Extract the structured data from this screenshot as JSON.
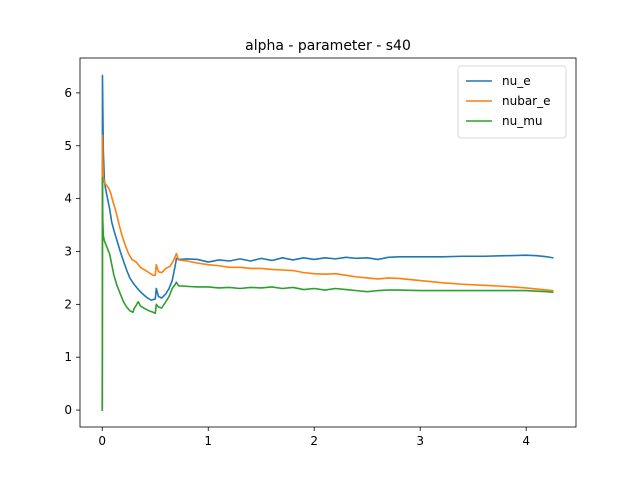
{
  "chart_data": {
    "type": "line",
    "title": "alpha - parameter - s40",
    "xlabel": "",
    "ylabel": "",
    "xlim": [
      -0.21,
      4.47
    ],
    "ylim": [
      -0.32,
      6.66
    ],
    "xticks": [
      0,
      1,
      2,
      3,
      4
    ],
    "yticks": [
      0,
      1,
      2,
      3,
      4,
      5,
      6
    ],
    "grid": false,
    "legend_position": "top-right",
    "series": [
      {
        "name": "nu_e",
        "color": "#1f77b4",
        "points": [
          [
            0.0,
            0.0
          ],
          [
            0.002,
            6.33
          ],
          [
            0.006,
            5.6
          ],
          [
            0.01,
            4.9
          ],
          [
            0.02,
            4.35
          ],
          [
            0.03,
            4.2
          ],
          [
            0.05,
            4.0
          ],
          [
            0.07,
            3.8
          ],
          [
            0.09,
            3.55
          ],
          [
            0.11,
            3.4
          ],
          [
            0.14,
            3.2
          ],
          [
            0.17,
            3.0
          ],
          [
            0.2,
            2.82
          ],
          [
            0.23,
            2.65
          ],
          [
            0.26,
            2.5
          ],
          [
            0.3,
            2.38
          ],
          [
            0.34,
            2.28
          ],
          [
            0.38,
            2.2
          ],
          [
            0.42,
            2.13
          ],
          [
            0.46,
            2.08
          ],
          [
            0.5,
            2.1
          ],
          [
            0.51,
            2.3
          ],
          [
            0.53,
            2.15
          ],
          [
            0.56,
            2.12
          ],
          [
            0.6,
            2.2
          ],
          [
            0.63,
            2.3
          ],
          [
            0.66,
            2.45
          ],
          [
            0.69,
            2.75
          ],
          [
            0.7,
            2.87
          ],
          [
            0.72,
            2.85
          ],
          [
            0.8,
            2.86
          ],
          [
            0.9,
            2.85
          ],
          [
            1.0,
            2.8
          ],
          [
            1.1,
            2.84
          ],
          [
            1.2,
            2.82
          ],
          [
            1.3,
            2.86
          ],
          [
            1.4,
            2.82
          ],
          [
            1.5,
            2.87
          ],
          [
            1.6,
            2.83
          ],
          [
            1.7,
            2.88
          ],
          [
            1.8,
            2.84
          ],
          [
            1.9,
            2.88
          ],
          [
            2.0,
            2.85
          ],
          [
            2.1,
            2.88
          ],
          [
            2.2,
            2.86
          ],
          [
            2.3,
            2.89
          ],
          [
            2.4,
            2.87
          ],
          [
            2.5,
            2.88
          ],
          [
            2.6,
            2.85
          ],
          [
            2.7,
            2.89
          ],
          [
            2.8,
            2.9
          ],
          [
            3.0,
            2.9
          ],
          [
            3.2,
            2.9
          ],
          [
            3.4,
            2.91
          ],
          [
            3.6,
            2.91
          ],
          [
            3.8,
            2.92
          ],
          [
            4.0,
            2.93
          ],
          [
            4.1,
            2.92
          ],
          [
            4.2,
            2.9
          ],
          [
            4.25,
            2.88
          ]
        ]
      },
      {
        "name": "nubar_e",
        "color": "#ff7f0e",
        "points": [
          [
            0.0,
            0.05
          ],
          [
            0.002,
            5.2
          ],
          [
            0.005,
            4.7
          ],
          [
            0.01,
            4.4
          ],
          [
            0.02,
            4.3
          ],
          [
            0.04,
            4.25
          ],
          [
            0.06,
            4.2
          ],
          [
            0.08,
            4.1
          ],
          [
            0.1,
            3.95
          ],
          [
            0.13,
            3.75
          ],
          [
            0.16,
            3.5
          ],
          [
            0.19,
            3.28
          ],
          [
            0.22,
            3.1
          ],
          [
            0.25,
            2.95
          ],
          [
            0.28,
            2.85
          ],
          [
            0.32,
            2.8
          ],
          [
            0.36,
            2.7
          ],
          [
            0.4,
            2.65
          ],
          [
            0.44,
            2.6
          ],
          [
            0.48,
            2.55
          ],
          [
            0.5,
            2.55
          ],
          [
            0.51,
            2.75
          ],
          [
            0.53,
            2.62
          ],
          [
            0.56,
            2.6
          ],
          [
            0.6,
            2.68
          ],
          [
            0.64,
            2.72
          ],
          [
            0.67,
            2.82
          ],
          [
            0.7,
            2.96
          ],
          [
            0.72,
            2.84
          ],
          [
            0.8,
            2.82
          ],
          [
            0.9,
            2.78
          ],
          [
            1.0,
            2.75
          ],
          [
            1.1,
            2.73
          ],
          [
            1.2,
            2.7
          ],
          [
            1.3,
            2.7
          ],
          [
            1.4,
            2.68
          ],
          [
            1.5,
            2.68
          ],
          [
            1.6,
            2.66
          ],
          [
            1.7,
            2.65
          ],
          [
            1.8,
            2.64
          ],
          [
            1.9,
            2.6
          ],
          [
            2.0,
            2.58
          ],
          [
            2.1,
            2.57
          ],
          [
            2.2,
            2.58
          ],
          [
            2.3,
            2.55
          ],
          [
            2.4,
            2.52
          ],
          [
            2.5,
            2.5
          ],
          [
            2.6,
            2.48
          ],
          [
            2.7,
            2.5
          ],
          [
            2.8,
            2.49
          ],
          [
            3.0,
            2.45
          ],
          [
            3.2,
            2.41
          ],
          [
            3.4,
            2.38
          ],
          [
            3.6,
            2.36
          ],
          [
            3.8,
            2.34
          ],
          [
            4.0,
            2.31
          ],
          [
            4.1,
            2.29
          ],
          [
            4.2,
            2.27
          ],
          [
            4.25,
            2.26
          ]
        ]
      },
      {
        "name": "nu_mu",
        "color": "#2ca02c",
        "points": [
          [
            0.0,
            0.0
          ],
          [
            0.002,
            4.4
          ],
          [
            0.005,
            3.6
          ],
          [
            0.01,
            3.3
          ],
          [
            0.02,
            3.2
          ],
          [
            0.03,
            3.15
          ],
          [
            0.05,
            3.05
          ],
          [
            0.07,
            2.95
          ],
          [
            0.09,
            2.75
          ],
          [
            0.11,
            2.55
          ],
          [
            0.14,
            2.35
          ],
          [
            0.17,
            2.2
          ],
          [
            0.2,
            2.05
          ],
          [
            0.23,
            1.95
          ],
          [
            0.26,
            1.88
          ],
          [
            0.29,
            1.85
          ],
          [
            0.3,
            1.92
          ],
          [
            0.32,
            1.98
          ],
          [
            0.34,
            2.05
          ],
          [
            0.36,
            1.97
          ],
          [
            0.4,
            1.92
          ],
          [
            0.44,
            1.88
          ],
          [
            0.48,
            1.85
          ],
          [
            0.5,
            1.83
          ],
          [
            0.51,
            2.0
          ],
          [
            0.53,
            1.95
          ],
          [
            0.56,
            1.93
          ],
          [
            0.6,
            2.05
          ],
          [
            0.63,
            2.15
          ],
          [
            0.66,
            2.3
          ],
          [
            0.69,
            2.38
          ],
          [
            0.7,
            2.42
          ],
          [
            0.72,
            2.35
          ],
          [
            0.8,
            2.34
          ],
          [
            0.9,
            2.33
          ],
          [
            1.0,
            2.33
          ],
          [
            1.1,
            2.31
          ],
          [
            1.2,
            2.32
          ],
          [
            1.3,
            2.3
          ],
          [
            1.4,
            2.32
          ],
          [
            1.5,
            2.31
          ],
          [
            1.6,
            2.33
          ],
          [
            1.7,
            2.3
          ],
          [
            1.8,
            2.32
          ],
          [
            1.9,
            2.28
          ],
          [
            2.0,
            2.3
          ],
          [
            2.1,
            2.27
          ],
          [
            2.2,
            2.3
          ],
          [
            2.3,
            2.28
          ],
          [
            2.4,
            2.26
          ],
          [
            2.5,
            2.24
          ],
          [
            2.6,
            2.26
          ],
          [
            2.7,
            2.27
          ],
          [
            2.8,
            2.27
          ],
          [
            3.0,
            2.26
          ],
          [
            3.2,
            2.26
          ],
          [
            3.4,
            2.26
          ],
          [
            3.6,
            2.26
          ],
          [
            3.8,
            2.26
          ],
          [
            4.0,
            2.26
          ],
          [
            4.1,
            2.25
          ],
          [
            4.2,
            2.24
          ],
          [
            4.25,
            2.23
          ]
        ]
      }
    ]
  }
}
